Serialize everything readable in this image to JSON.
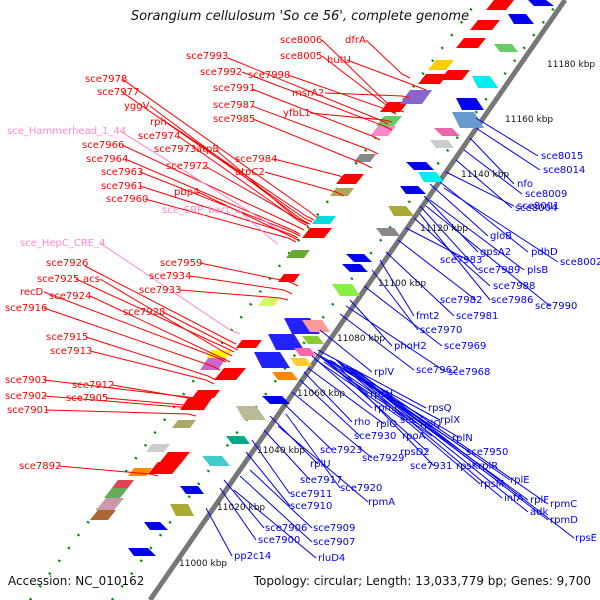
{
  "title": "Sorangium cellulosum 'So ce 56', complete genome",
  "footer": {
    "accession": "Accession: NC_010162",
    "summary": "Topology: circular; Length: 13,033,779 bp; Genes: 9,700"
  },
  "colors": {
    "forward_strand": "#ff0000",
    "reverse_strand": "#0000ee",
    "rna_feature": "#ff88cc",
    "backbone": "#888888",
    "tick_marks": "#008800"
  },
  "kbp_labels": [
    "11180 kbp",
    "11160 kbp",
    "11140 kbp",
    "11120 kbp",
    "11100 kbp",
    "11080 kbp",
    "11060 kbp",
    "11040 kbp",
    "11020 kbp",
    "11000 kbp"
  ],
  "labels_left": [
    "sce8006",
    "dfrA",
    "sce7993",
    "sce8005",
    "hutU",
    "sce7992",
    "sce7998",
    "sce7978",
    "sce7991",
    "msrA2",
    "sce7977",
    "yggV",
    "sce7987",
    "yfbL1",
    "sce7985",
    "rph",
    "sce_Hammerhead_1_44",
    "sce7974",
    "sce7966",
    "sce7973",
    "atpB",
    "sce7964",
    "sce7984",
    "sce7972",
    "sce7963",
    "atpC2",
    "sce7961",
    "pbp4",
    "sce7960",
    "sce_SRP_bact_2",
    "sce_HepC_CRE_4",
    "sce7926",
    "sce7959",
    "sce7925",
    "acs",
    "sce7934",
    "recD",
    "sce7924",
    "sce7933",
    "sce7916",
    "sce7928",
    "sce7915",
    "sce7913",
    "sce7903",
    "sce7912",
    "sce7902",
    "sce7905",
    "sce7901",
    "sce7892"
  ],
  "labels_right": [
    "sce8015",
    "sce8014",
    "nfo",
    "sce8009",
    "sce8004",
    "sce8001",
    "gloB",
    "pdhD",
    "gpsA2",
    "sce8002",
    "sce7989",
    "plsB",
    "sce7983",
    "sce7988",
    "sce7982",
    "sce7986",
    "sce7990",
    "fmt2",
    "sce7981",
    "sce7970",
    "phoH2",
    "sce7969",
    "rplV",
    "sce7962",
    "sce7968",
    "rpsH",
    "rpmJ",
    "rpsQ",
    "secY",
    "rplX",
    "rho",
    "rplO",
    "rplQ",
    "sce7930",
    "rpoA",
    "rplN",
    "rpsD2",
    "sce7950",
    "sce7923",
    "sce7929",
    "sce7931",
    "rpsK",
    "rplR",
    "rplU",
    "rplE",
    "rpsM",
    "sce7917",
    "sce7920",
    "infA",
    "rplF",
    "sce7911",
    "rpmA",
    "adk",
    "rpmC",
    "sce7910",
    "rpmD",
    "sce7906",
    "sce7909",
    "sce7900",
    "sce7907",
    "rpsE",
    "pp2c14",
    "rluD4"
  ]
}
